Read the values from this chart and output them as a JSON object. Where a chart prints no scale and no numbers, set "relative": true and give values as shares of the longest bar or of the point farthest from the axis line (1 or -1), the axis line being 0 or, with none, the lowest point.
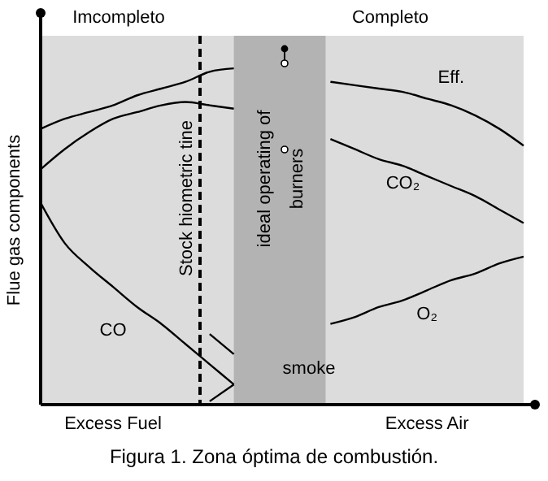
{
  "chart_data": {
    "type": "line",
    "title": "Figura 1. Zona óptima de combustión.",
    "ylabel": "Flue gas components",
    "relative": true,
    "categories": [
      null,
      null,
      null,
      "Excess Fuel",
      null,
      null,
      null,
      null,
      null,
      null,
      null,
      null,
      null,
      null,
      null,
      null,
      "Excess Air",
      null,
      null,
      null,
      null
    ],
    "series": [
      {
        "name": "Eff.",
        "color": "#000000",
        "values": [
          0.82,
          0.85,
          0.87,
          0.89,
          0.92,
          0.94,
          0.96,
          0.99,
          1,
          null,
          null,
          null,
          0.96,
          0.95,
          0.94,
          0.93,
          0.91,
          0.89,
          0.86,
          0.82,
          0.77
        ]
      },
      {
        "name": "CO₂",
        "color": "#000000",
        "values": [
          0.7,
          0.76,
          0.81,
          0.85,
          0.87,
          0.89,
          0.9,
          0.89,
          0.88,
          null,
          null,
          null,
          0.79,
          0.76,
          0.73,
          0.71,
          0.68,
          0.65,
          0.62,
          0.58,
          0.54
        ]
      },
      {
        "name": "O₂",
        "color": "#000000",
        "values": [
          null,
          null,
          null,
          null,
          null,
          null,
          null,
          null,
          null,
          null,
          null,
          null,
          0.24,
          0.26,
          0.29,
          0.31,
          0.34,
          0.37,
          0.39,
          0.42,
          0.44
        ]
      },
      {
        "name": "CO",
        "color": "#000000",
        "values": [
          0.6,
          0.48,
          0.41,
          0.35,
          0.29,
          0.24,
          0.18,
          0.12,
          0.06,
          null,
          null,
          null,
          null,
          null,
          null,
          null,
          null,
          null,
          null,
          null,
          null
        ]
      },
      {
        "color": "#000000",
        "values": [
          null,
          null,
          null,
          null,
          null,
          null,
          null,
          0.21,
          0.15,
          null,
          null,
          null,
          null,
          null,
          null,
          null,
          null,
          null,
          null,
          null,
          null
        ]
      },
      {
        "color": "#000000",
        "values": [
          null,
          null,
          null,
          null,
          null,
          null,
          null,
          0.01,
          0.06,
          null,
          null,
          null,
          null,
          null,
          null,
          null,
          null,
          null,
          null,
          null,
          null
        ]
      }
    ],
    "ref_lines": [
      {
        "axis": "x",
        "label": "Stock hiometric tine",
        "line_style": "dashed",
        "color": "#000000"
      }
    ],
    "annotations": [
      "Imcompleto",
      "Completo",
      "smoke",
      "ideal operating of\nburners"
    ]
  }
}
